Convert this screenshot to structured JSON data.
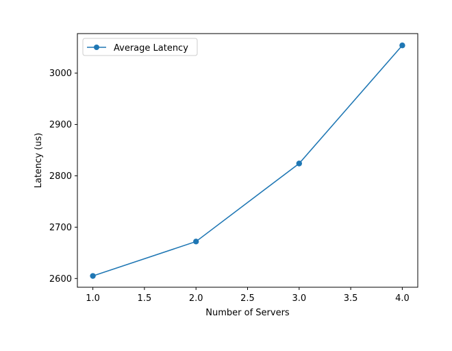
{
  "chart_data": {
    "type": "line",
    "title": "",
    "xlabel": "Number of Servers",
    "ylabel": "Latency (us)",
    "xlim": [
      0.85,
      4.15
    ],
    "ylim": [
      2583,
      3077
    ],
    "xticks": [
      1.0,
      1.5,
      2.0,
      2.5,
      3.0,
      3.5,
      4.0
    ],
    "xtick_labels": [
      "1.0",
      "1.5",
      "2.0",
      "2.5",
      "3.0",
      "3.5",
      "4.0"
    ],
    "yticks": [
      2600,
      2700,
      2800,
      2900,
      3000
    ],
    "ytick_labels": [
      "2600",
      "2700",
      "2800",
      "2900",
      "3000"
    ],
    "grid": false,
    "legend_position": "upper-left",
    "series": [
      {
        "name": "Average Latency",
        "color": "#1f77b4",
        "marker": "circle",
        "x": [
          1,
          2,
          3,
          4
        ],
        "y": [
          2605,
          2672,
          2824,
          3054
        ]
      }
    ]
  }
}
